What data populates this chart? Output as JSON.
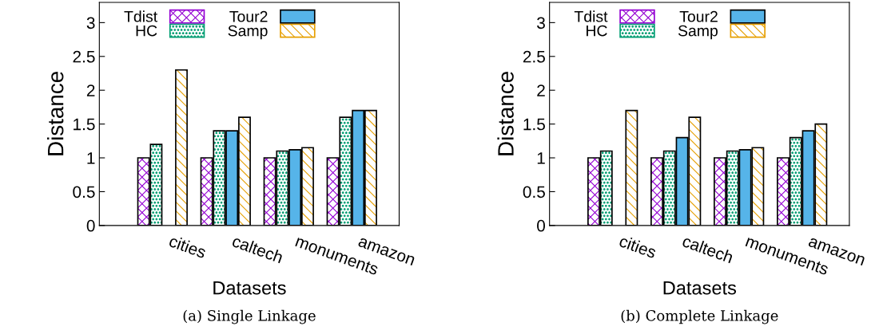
{
  "chart_data": [
    {
      "type": "bar",
      "xlabel": "Datasets",
      "ylabel": "Distance",
      "categories": [
        "cities",
        "caltech",
        "monuments",
        "amazon"
      ],
      "series": [
        {
          "name": "Tdist",
          "color": "#9400d3",
          "values": [
            1,
            1,
            1,
            1
          ]
        },
        {
          "name": "HC",
          "color": "#009e73",
          "values": [
            1.2,
            1.4,
            1.1,
            1.6
          ]
        },
        {
          "name": "Tour2",
          "color": "#56b4e9",
          "values": [
            null,
            1.4,
            1.12,
            1.7
          ]
        },
        {
          "name": "Samp",
          "color": "#e69f00",
          "values": [
            2.3,
            1.6,
            1.15,
            1.7
          ]
        }
      ],
      "ylim": [
        0,
        3.3
      ],
      "yticks": [
        0,
        0.5,
        1,
        1.5,
        2,
        2.5,
        3
      ],
      "legend": "top",
      "grid": false,
      "annotations": [
        "(a) Single Linkage"
      ]
    },
    {
      "type": "bar",
      "xlabel": "Datasets",
      "ylabel": "Distance",
      "categories": [
        "cities",
        "caltech",
        "monuments",
        "amazon"
      ],
      "series": [
        {
          "name": "Tdist",
          "color": "#9400d3",
          "values": [
            1,
            1,
            1,
            1
          ]
        },
        {
          "name": "HC",
          "color": "#009e73",
          "values": [
            1.1,
            1.1,
            1.1,
            1.3
          ]
        },
        {
          "name": "Tour2",
          "color": "#56b4e9",
          "values": [
            null,
            1.3,
            1.12,
            1.4
          ]
        },
        {
          "name": "Samp",
          "color": "#e69f00",
          "values": [
            1.7,
            1.6,
            1.15,
            1.5
          ]
        }
      ],
      "ylim": [
        0,
        3.3
      ],
      "yticks": [
        0,
        0.5,
        1,
        1.5,
        2,
        2.5,
        3
      ],
      "legend": "top",
      "grid": false,
      "annotations": [
        "(b) Complete Linkage"
      ]
    }
  ]
}
